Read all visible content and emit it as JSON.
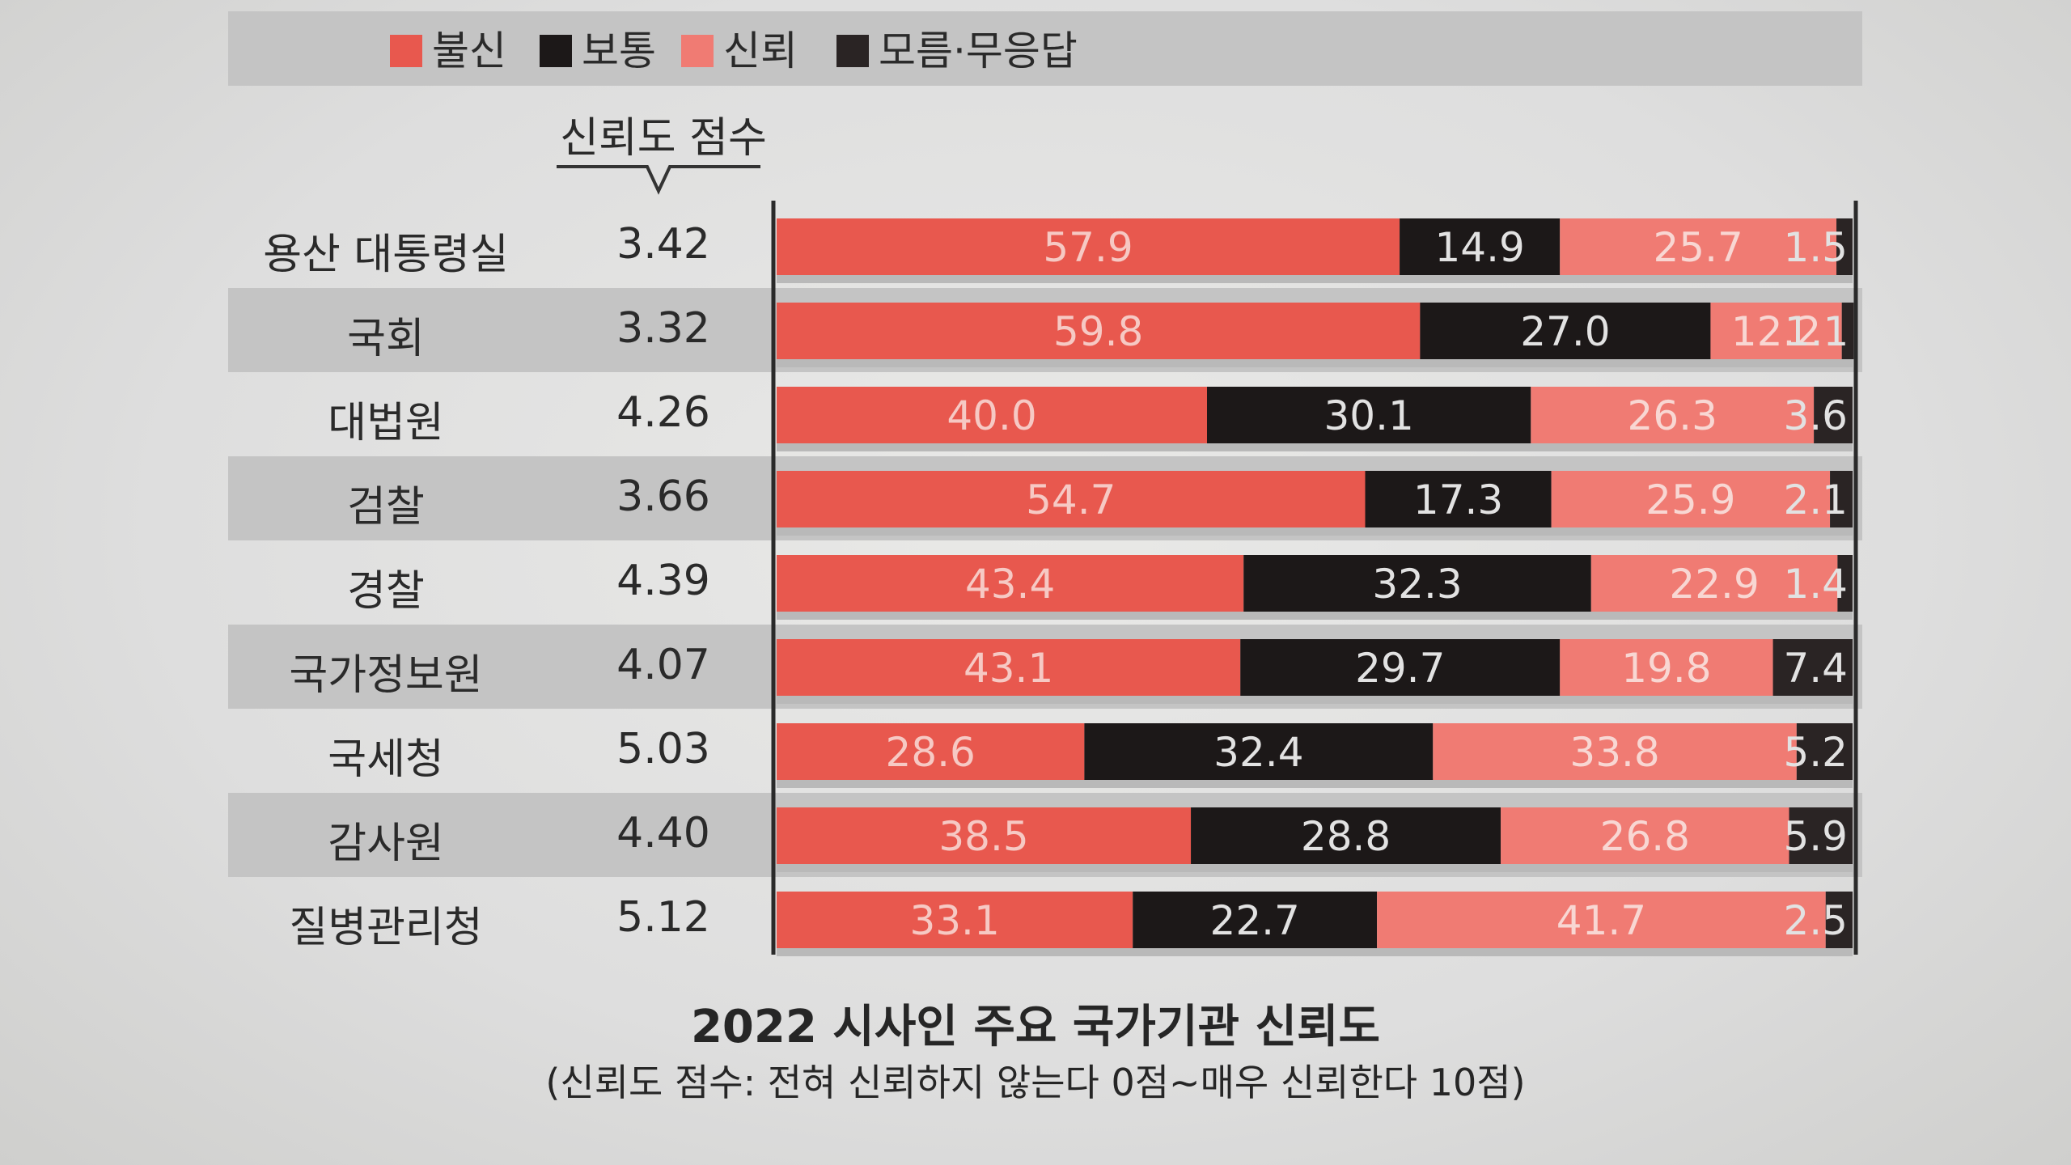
{
  "chart_data": {
    "type": "bar",
    "orientation": "horizontal",
    "stacked": true,
    "title": "2022 시사인 주요 국가기관 신뢰도",
    "subtitle": "(신뢰도 점수: 전혀 신뢰하지 않는다 0점~매우 신뢰한다 10점)",
    "score_header": "신뢰도 점수",
    "categories": [
      "용산 대통령실",
      "국회",
      "대법원",
      "검찰",
      "경찰",
      "국가정보원",
      "국세청",
      "감사원",
      "질병관리청"
    ],
    "scores": [
      "3.42",
      "3.32",
      "4.26",
      "3.66",
      "4.39",
      "4.07",
      "5.03",
      "4.40",
      "5.12"
    ],
    "series": [
      {
        "name": "불신",
        "color": "#e8584e",
        "label_color": "#f6c9c4",
        "values": [
          57.9,
          59.8,
          40.0,
          54.7,
          43.4,
          43.1,
          28.6,
          38.5,
          33.1
        ]
      },
      {
        "name": "보통",
        "color": "#1c1818",
        "label_color": "#e2e2e2",
        "values": [
          14.9,
          27.0,
          30.1,
          17.3,
          32.3,
          29.7,
          32.4,
          28.8,
          22.7
        ]
      },
      {
        "name": "신뢰",
        "color": "#f07b73",
        "label_color": "#f8d7d3",
        "values": [
          25.7,
          12.2,
          26.3,
          25.9,
          22.9,
          19.8,
          33.8,
          26.8,
          41.7
        ]
      },
      {
        "name": "모름·무응답",
        "color": "#2a2424",
        "label_color": "#e2e2e2",
        "values": [
          1.5,
          1.1,
          3.6,
          2.1,
          1.4,
          7.4,
          5.2,
          5.9,
          2.5
        ]
      }
    ],
    "value_labels": [
      [
        "57.9",
        "14.9",
        "25.7",
        "1.5"
      ],
      [
        "59.8",
        "27.0",
        "12.2",
        "1.1"
      ],
      [
        "40.0",
        "30.1",
        "26.3",
        "3.6"
      ],
      [
        "54.7",
        "17.3",
        "25.9",
        "2.1"
      ],
      [
        "43.4",
        "32.3",
        "22.9",
        "1.4"
      ],
      [
        "43.1",
        "29.7",
        "19.8",
        "7.4"
      ],
      [
        "28.6",
        "32.4",
        "33.8",
        "5.2"
      ],
      [
        "38.5",
        "28.8",
        "26.8",
        "5.9"
      ],
      [
        "33.1",
        "22.7",
        "41.7",
        "2.5"
      ]
    ],
    "xlim": [
      0,
      100
    ],
    "legend_position": "top",
    "unit": "%"
  }
}
